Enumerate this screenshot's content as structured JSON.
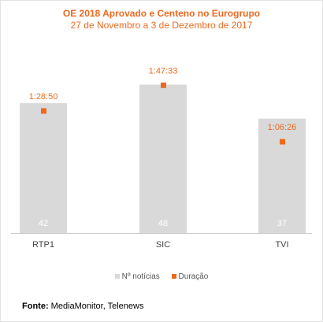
{
  "chart_data": {
    "type": "bar",
    "title": "OE 2018 Aprovado e Centeno no Eurogrupo",
    "subtitle": "27 de Novembro a 3 de Dezembro de 2017",
    "categories": [
      "RTP1",
      "SIC",
      "TVI"
    ],
    "series": [
      {
        "name": "Nº notícias",
        "type": "bar",
        "values": [
          42,
          48,
          37
        ],
        "color": "#d9d9d9"
      },
      {
        "name": "Duração",
        "type": "scatter",
        "values": [
          "1:28:50",
          "1:47:33",
          "1:06:26"
        ],
        "seconds": [
          5330,
          6453,
          3986
        ],
        "color": "#ec6a1f"
      }
    ],
    "ylim": [
      0,
      55
    ],
    "ylim_seconds": [
      0,
      7425
    ],
    "grid": false,
    "legend": "bottom"
  },
  "source": {
    "label": "Fonte:",
    "text": "MediaMonitor, Telenews"
  }
}
